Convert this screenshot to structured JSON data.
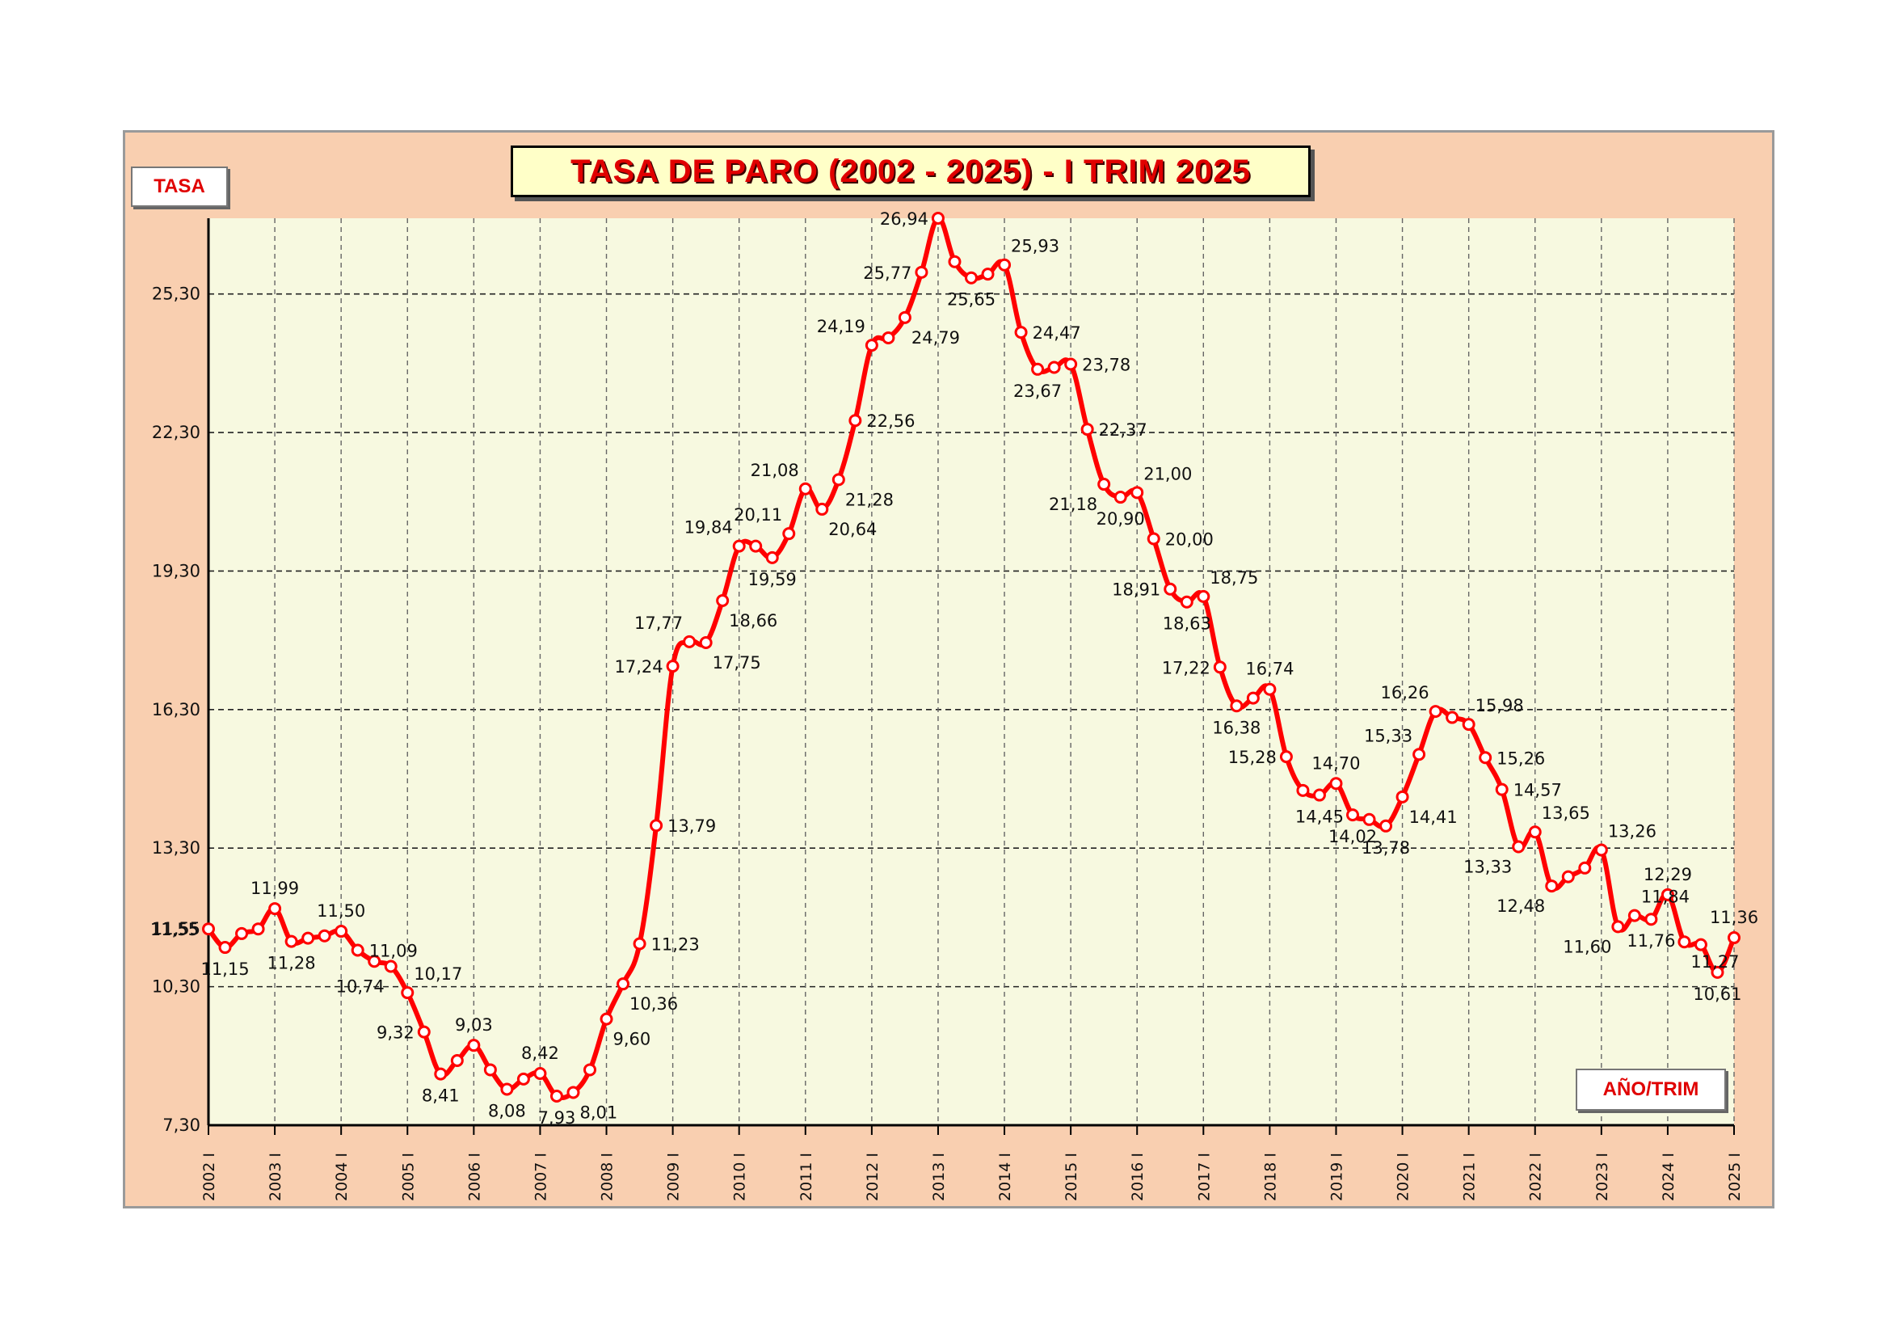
{
  "chart_data": {
    "type": "line",
    "title": "TASA DE PARO  (2002 - 2025) - I TRIM 2025",
    "ylabel": "TASA",
    "xlabel": "AÑO/TRIM",
    "ylim": [
      7.3,
      26.94
    ],
    "yticks": [
      "7,30",
      "10,30",
      "11,55",
      "13,30",
      "16,30",
      "19,30",
      "22,30",
      "25,30"
    ],
    "ytick_values": [
      7.3,
      10.3,
      11.55,
      13.3,
      16.3,
      19.3,
      22.3,
      25.3
    ],
    "year_labels": [
      "2002 I",
      "2003 I",
      "2004 I",
      "2005 I",
      "2006 I",
      "2007 I",
      "2008 I",
      "2009 I",
      "2010 I",
      "2011 I",
      "2012 I",
      "2013 I",
      "2014 I",
      "2015 I",
      "2016 I",
      "2017 I",
      "2018 I",
      "2019 I",
      "2020 I",
      "2021 I",
      "2022 I",
      "2023 I",
      "2024 I",
      "2025 I"
    ],
    "grid": true,
    "line_color": "#ff0000",
    "plot_bg": "#f7f9e0",
    "frame_bg": "#f9cfb0",
    "series": [
      {
        "values": [
          11.55,
          11.15,
          11.45,
          11.55,
          11.99,
          11.28,
          11.35,
          11.4,
          11.5,
          11.09,
          10.85,
          10.74,
          10.17,
          9.32,
          8.41,
          8.7,
          9.03,
          8.5,
          8.08,
          8.3,
          8.42,
          7.93,
          8.01,
          8.5,
          9.6,
          10.36,
          11.23,
          13.79,
          17.24,
          17.77,
          17.75,
          18.66,
          19.84,
          19.84,
          19.59,
          20.11,
          21.08,
          20.64,
          21.28,
          22.56,
          24.19,
          24.35,
          24.79,
          25.77,
          26.94,
          26.0,
          25.65,
          25.73,
          25.93,
          24.47,
          23.67,
          23.71,
          23.78,
          22.37,
          21.18,
          20.9,
          21.0,
          20.0,
          18.91,
          18.63,
          18.75,
          17.22,
          16.38,
          16.55,
          16.74,
          15.28,
          14.55,
          14.45,
          14.7,
          14.02,
          13.92,
          13.78,
          14.41,
          15.33,
          16.26,
          16.13,
          15.98,
          15.26,
          14.57,
          13.33,
          13.65,
          12.48,
          12.68,
          12.87,
          13.26,
          11.6,
          11.84,
          11.76,
          12.29,
          11.27,
          11.21,
          10.61,
          11.36
        ]
      }
    ],
    "data_labels": [
      {
        "i": 0,
        "text": "11,55",
        "pos": "left"
      },
      {
        "i": 1,
        "text": "11,15",
        "pos": "below"
      },
      {
        "i": 4,
        "text": "11,99",
        "pos": "above"
      },
      {
        "i": 5,
        "text": "11,28",
        "pos": "below"
      },
      {
        "i": 8,
        "text": "11,50",
        "pos": "above"
      },
      {
        "i": 9,
        "text": "11,09",
        "pos": "right"
      },
      {
        "i": 11,
        "text": "10,74",
        "pos": "belowleft"
      },
      {
        "i": 12,
        "text": "10,17",
        "pos": "aboveright"
      },
      {
        "i": 13,
        "text": "9,32",
        "pos": "left"
      },
      {
        "i": 14,
        "text": "8,41",
        "pos": "below"
      },
      {
        "i": 16,
        "text": "9,03",
        "pos": "above"
      },
      {
        "i": 18,
        "text": "8,08",
        "pos": "below"
      },
      {
        "i": 20,
        "text": "8,42",
        "pos": "above"
      },
      {
        "i": 21,
        "text": "7,93",
        "pos": "below"
      },
      {
        "i": 22,
        "text": "8,01",
        "pos": "belowright"
      },
      {
        "i": 24,
        "text": "9,60",
        "pos": "belowright"
      },
      {
        "i": 25,
        "text": "10,36",
        "pos": "belowright"
      },
      {
        "i": 26,
        "text": "11,23",
        "pos": "right"
      },
      {
        "i": 27,
        "text": "13,79",
        "pos": "right"
      },
      {
        "i": 28,
        "text": "17,24",
        "pos": "left"
      },
      {
        "i": 29,
        "text": "17,77",
        "pos": "aboveleft"
      },
      {
        "i": 30,
        "text": "17,75",
        "pos": "belowright"
      },
      {
        "i": 31,
        "text": "18,66",
        "pos": "belowright"
      },
      {
        "i": 32,
        "text": "19,84",
        "pos": "aboveleft"
      },
      {
        "i": 34,
        "text": "19,59",
        "pos": "below"
      },
      {
        "i": 35,
        "text": "20,11",
        "pos": "aboveleft"
      },
      {
        "i": 36,
        "text": "21,08",
        "pos": "aboveleft"
      },
      {
        "i": 37,
        "text": "20,64",
        "pos": "belowright"
      },
      {
        "i": 38,
        "text": "21,28",
        "pos": "belowright"
      },
      {
        "i": 39,
        "text": "22,56",
        "pos": "right"
      },
      {
        "i": 40,
        "text": "24,19",
        "pos": "aboveleft"
      },
      {
        "i": 42,
        "text": "24,79",
        "pos": "belowright"
      },
      {
        "i": 43,
        "text": "25,77",
        "pos": "left"
      },
      {
        "i": 44,
        "text": "26,94",
        "pos": "left"
      },
      {
        "i": 46,
        "text": "25,65",
        "pos": "below"
      },
      {
        "i": 48,
        "text": "25,93",
        "pos": "aboveright"
      },
      {
        "i": 49,
        "text": "24,47",
        "pos": "right"
      },
      {
        "i": 50,
        "text": "23,67",
        "pos": "below"
      },
      {
        "i": 52,
        "text": "23,78",
        "pos": "right"
      },
      {
        "i": 53,
        "text": "22,37",
        "pos": "right"
      },
      {
        "i": 54,
        "text": "21,18",
        "pos": "belowleft"
      },
      {
        "i": 55,
        "text": "20,90",
        "pos": "below"
      },
      {
        "i": 56,
        "text": "21,00",
        "pos": "aboveright"
      },
      {
        "i": 57,
        "text": "20,00",
        "pos": "right"
      },
      {
        "i": 58,
        "text": "18,91",
        "pos": "left"
      },
      {
        "i": 59,
        "text": "18,63",
        "pos": "below"
      },
      {
        "i": 60,
        "text": "18,75",
        "pos": "aboveright"
      },
      {
        "i": 61,
        "text": "17,22",
        "pos": "left"
      },
      {
        "i": 62,
        "text": "16,38",
        "pos": "below"
      },
      {
        "i": 64,
        "text": "16,74",
        "pos": "above"
      },
      {
        "i": 65,
        "text": "15,28",
        "pos": "left"
      },
      {
        "i": 67,
        "text": "14,45",
        "pos": "below"
      },
      {
        "i": 68,
        "text": "14,70",
        "pos": "above"
      },
      {
        "i": 69,
        "text": "14,02",
        "pos": "below"
      },
      {
        "i": 71,
        "text": "13,78",
        "pos": "below"
      },
      {
        "i": 72,
        "text": "14,41",
        "pos": "belowright"
      },
      {
        "i": 73,
        "text": "15,33",
        "pos": "aboveleft"
      },
      {
        "i": 74,
        "text": "16,26",
        "pos": "aboveleft"
      },
      {
        "i": 76,
        "text": "15,98",
        "pos": "aboveright"
      },
      {
        "i": 77,
        "text": "15,26",
        "pos": "right"
      },
      {
        "i": 78,
        "text": "14,57",
        "pos": "right"
      },
      {
        "i": 79,
        "text": "13,33",
        "pos": "belowleft"
      },
      {
        "i": 80,
        "text": "13,65",
        "pos": "aboveright"
      },
      {
        "i": 81,
        "text": "12,48",
        "pos": "belowleft"
      },
      {
        "i": 84,
        "text": "13,26",
        "pos": "aboveright"
      },
      {
        "i": 85,
        "text": "11,60",
        "pos": "belowleft"
      },
      {
        "i": 86,
        "text": "11,84",
        "pos": "aboveright"
      },
      {
        "i": 87,
        "text": "11,76",
        "pos": "below"
      },
      {
        "i": 88,
        "text": "12,29",
        "pos": "above"
      },
      {
        "i": 89,
        "text": "11,27",
        "pos": "belowright"
      },
      {
        "i": 91,
        "text": "10,61",
        "pos": "below"
      },
      {
        "i": 92,
        "text": "11,36",
        "pos": "above"
      }
    ]
  }
}
